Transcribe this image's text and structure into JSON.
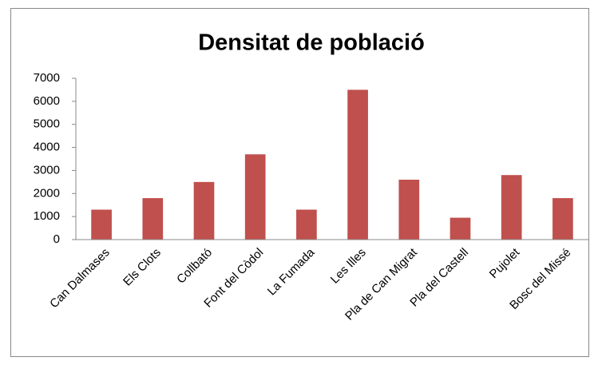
{
  "chart_data": {
    "type": "bar",
    "title": "Densitat de població",
    "categories": [
      "Can Dalmases",
      "Els Clots",
      "Collbató",
      "Font del Còdol",
      "La Fumada",
      "Les Illes",
      "Pla de Can Migrat",
      "Pla del Castell",
      "Pujolet",
      "Bosc del Missé"
    ],
    "values": [
      1300,
      1800,
      2500,
      3700,
      1300,
      6500,
      2600,
      950,
      2800,
      1800
    ],
    "color": "#c0504d",
    "ylim": [
      0,
      7000
    ],
    "yticks": [
      0,
      1000,
      2000,
      3000,
      4000,
      5000,
      6000,
      7000
    ],
    "grid": false
  }
}
